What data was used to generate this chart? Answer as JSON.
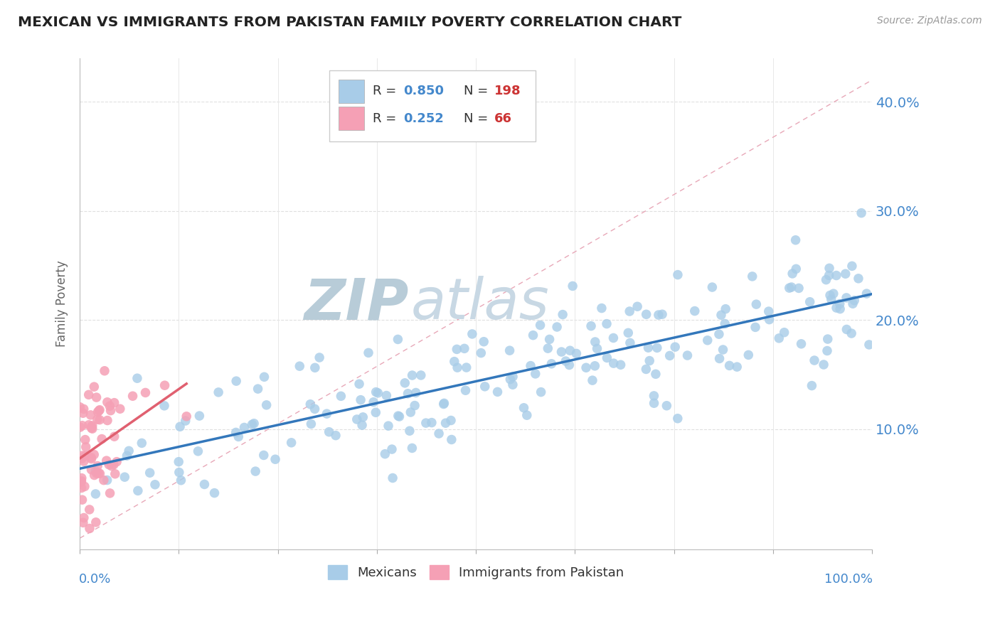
{
  "title": "MEXICAN VS IMMIGRANTS FROM PAKISTAN FAMILY POVERTY CORRELATION CHART",
  "source_text": "Source: ZipAtlas.com",
  "ylabel": "Family Poverty",
  "y_tick_labels": [
    "10.0%",
    "20.0%",
    "30.0%",
    "40.0%"
  ],
  "y_tick_values": [
    0.1,
    0.2,
    0.3,
    0.4
  ],
  "xlim": [
    0.0,
    1.0
  ],
  "ylim": [
    -0.01,
    0.44
  ],
  "legend_blue_r": "0.850",
  "legend_blue_n": "198",
  "legend_pink_r": "0.252",
  "legend_pink_n": "66",
  "blue_color": "#a8cce8",
  "pink_color": "#f5a0b5",
  "blue_line_color": "#3377bb",
  "pink_line_color": "#e06070",
  "ref_line_color": "#e8a8b8",
  "watermark_zip_color": "#b8ccd8",
  "watermark_atlas_color": "#c8d8e4",
  "title_color": "#222222",
  "axis_label_color": "#4488cc",
  "legend_r_color": "#4488cc",
  "legend_n_color": "#cc3333",
  "background_color": "#ffffff",
  "seed": 42,
  "n_blue": 198,
  "n_pink": 66,
  "blue_r": 0.85,
  "pink_r": 0.252,
  "scatter_size": 95,
  "scatter_lw": 0.8
}
